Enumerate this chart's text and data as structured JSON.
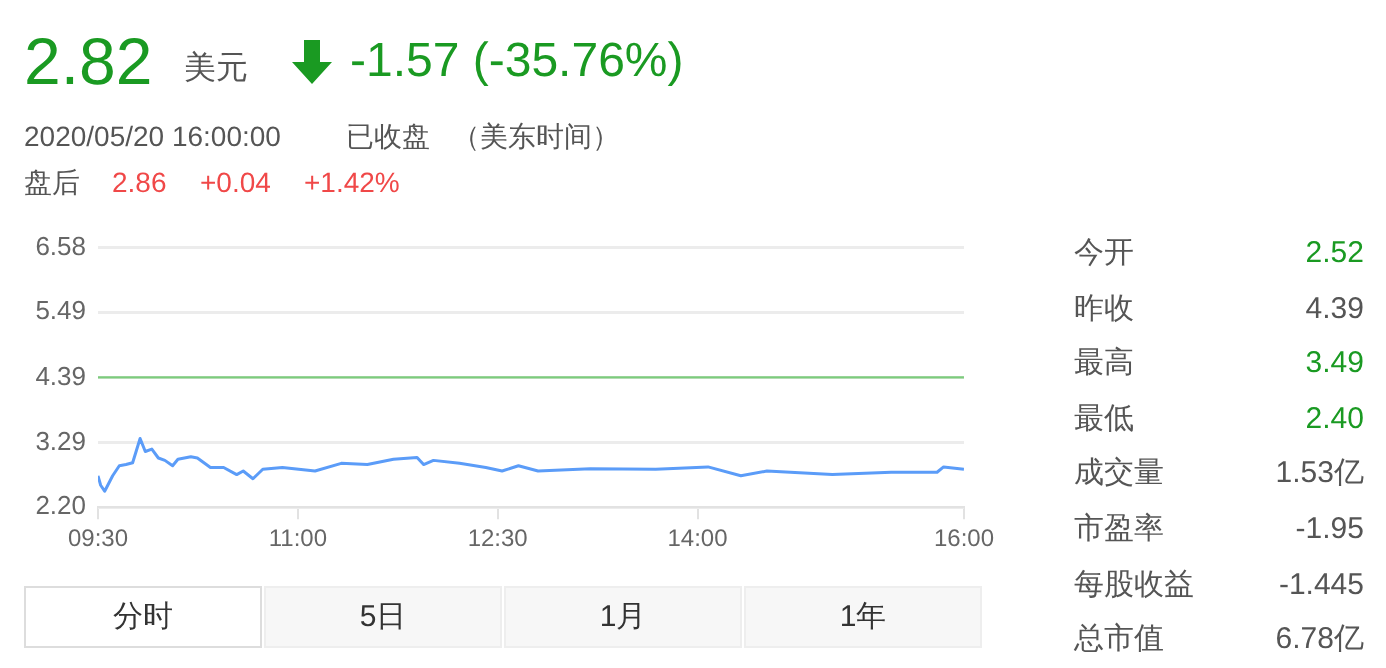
{
  "chart_data": {
    "type": "line",
    "x": [
      9.5,
      9.52,
      9.55,
      9.61,
      9.66,
      9.71,
      9.76,
      9.816,
      9.855,
      9.904,
      9.953,
      10.002,
      10.06,
      10.1,
      10.197,
      10.246,
      10.344,
      10.443,
      10.541,
      10.59,
      10.663,
      10.737,
      10.884,
      11.129,
      11.326,
      11.522,
      11.718,
      11.895,
      11.944,
      12.018,
      12.214,
      12.411,
      12.533,
      12.656,
      12.803,
      13.195,
      13.686,
      14.079,
      14.325,
      14.521,
      15.012,
      15.454,
      15.798,
      15.847,
      16.0
    ],
    "series": [
      {
        "color": "#5b9cf8",
        "values": [
          2.73,
          2.57,
          2.47,
          2.73,
          2.9,
          2.92,
          2.95,
          3.36,
          3.14,
          3.18,
          3.03,
          2.99,
          2.9,
          3.01,
          3.05,
          3.03,
          2.87,
          2.87,
          2.75,
          2.81,
          2.68,
          2.84,
          2.87,
          2.81,
          2.94,
          2.92,
          3.01,
          3.04,
          2.92,
          2.99,
          2.94,
          2.87,
          2.81,
          2.9,
          2.81,
          2.85,
          2.84,
          2.88,
          2.73,
          2.81,
          2.75,
          2.79,
          2.79,
          2.88,
          2.84
        ]
      }
    ],
    "xlim": [
      9.5,
      16.0
    ],
    "xticks": [
      {
        "value": 9.5,
        "label": "09:30"
      },
      {
        "value": 11,
        "label": "11:00"
      },
      {
        "value": 12.5,
        "label": "12:30"
      },
      {
        "value": 14,
        "label": "14:00"
      },
      {
        "value": 16,
        "label": "16:00"
      }
    ],
    "ylim": [
      2.2,
      6.58
    ],
    "yticks": [
      {
        "value": 2.2,
        "label": "2.20"
      },
      3.29,
      4.39,
      5.49,
      6.58
    ],
    "grid": "y",
    "marker": "none",
    "line_style": "solid",
    "legend": false,
    "ref_lines": [
      {
        "axis": "y",
        "value": 4.39,
        "color": "#7ccc7c"
      }
    ],
    "annotations": [
      "2.82",
      "美元",
      "-1.57 (-35.76%)",
      "2020/05/20 16:00:00",
      "已收盘",
      "（美东时间）",
      "盘后",
      "2.86",
      "+0.04",
      "+1.42%",
      "今开",
      "2.52",
      "昨收",
      "4.39",
      "最高",
      "3.49",
      "最低",
      "2.40",
      "成交量",
      "1.53亿",
      "市盈率",
      "-1.95",
      "每股收益",
      "-1.445",
      "总市值",
      "6.78亿",
      "分时",
      "5日",
      "1月",
      "1年"
    ]
  }
}
